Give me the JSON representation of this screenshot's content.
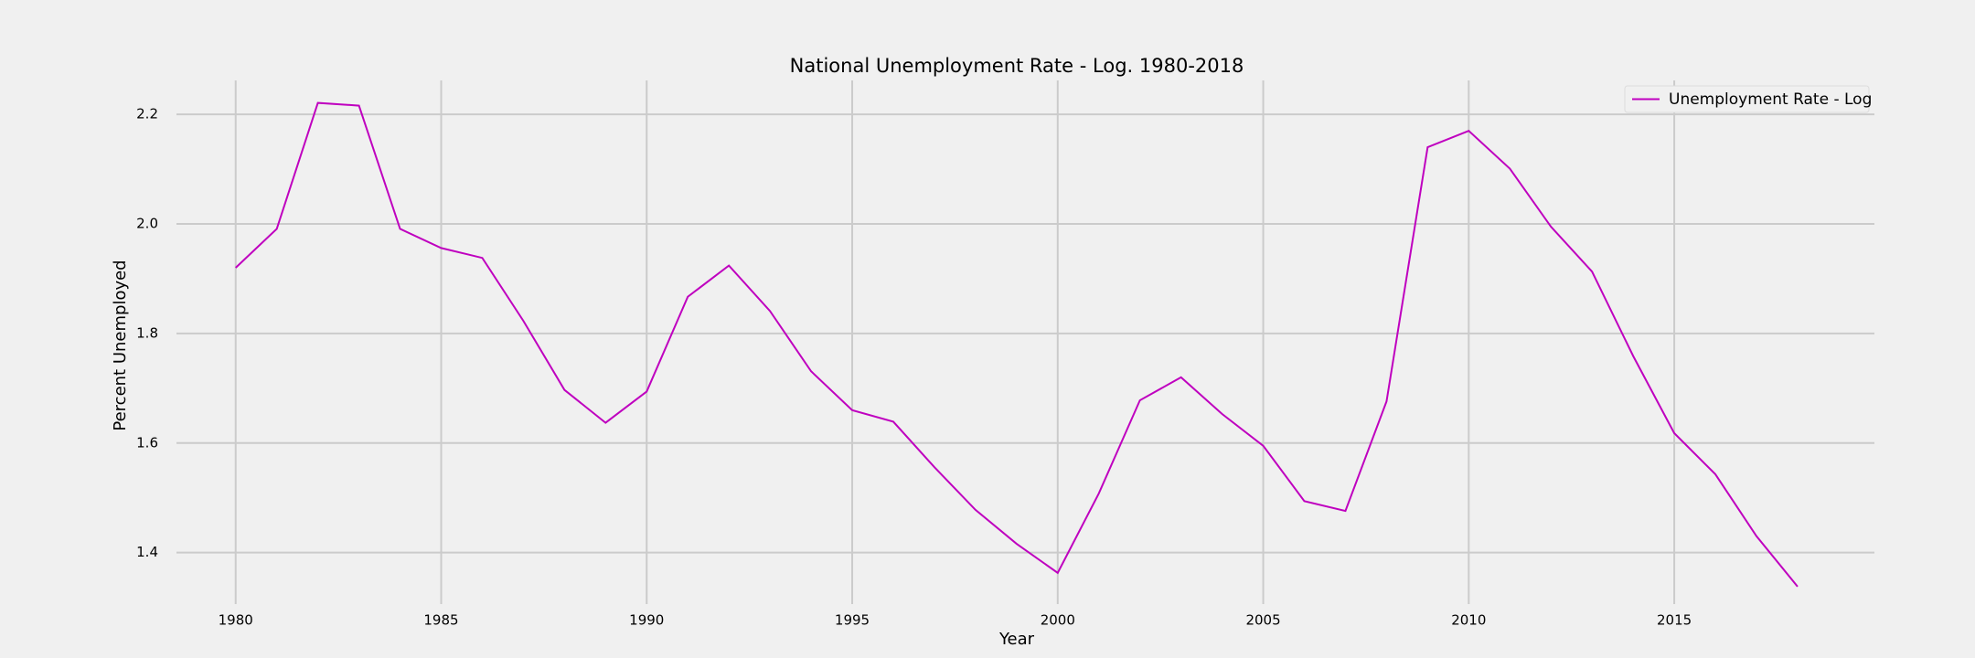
{
  "chart_data": {
    "type": "line",
    "title": "National Unemployment Rate - Log. 1980-2018",
    "x_label": "Year",
    "y_label": "Percent Unemployed",
    "x": [
      1980,
      1981,
      1982,
      1983,
      1984,
      1985,
      1986,
      1987,
      1988,
      1989,
      1990,
      1991,
      1992,
      1993,
      1994,
      1995,
      1996,
      1997,
      1998,
      1999,
      2000,
      2001,
      2002,
      2003,
      2004,
      2005,
      2006,
      2007,
      2008,
      2009,
      2010,
      2011,
      2012,
      2013,
      2014,
      2015,
      2016,
      2017,
      2018
    ],
    "series": [
      {
        "name": "Unemployment Rate - Log",
        "color": "#bf00bf",
        "values": [
          1.92,
          1.991,
          2.221,
          2.216,
          1.991,
          1.956,
          1.938,
          1.823,
          1.697,
          1.637,
          1.694,
          1.867,
          1.924,
          1.841,
          1.731,
          1.66,
          1.639,
          1.556,
          1.478,
          1.416,
          1.363,
          1.508,
          1.678,
          1.72,
          1.653,
          1.595,
          1.494,
          1.476,
          1.676,
          2.14,
          2.17,
          2.101,
          1.995,
          1.913,
          1.759,
          1.618,
          1.543,
          1.43,
          1.338
        ]
      }
    ],
    "xlim": [
      1978.56,
      2019.87
    ],
    "ylim": [
      1.306,
      2.262
    ],
    "xticks": [
      1980,
      1985,
      1990,
      1995,
      2000,
      2005,
      2010,
      2015
    ],
    "yticks": [
      1.4,
      1.6,
      1.8,
      {
        "value": 2,
        "label": "2.0"
      },
      2.2
    ],
    "grid": true,
    "legend": "upper right"
  }
}
